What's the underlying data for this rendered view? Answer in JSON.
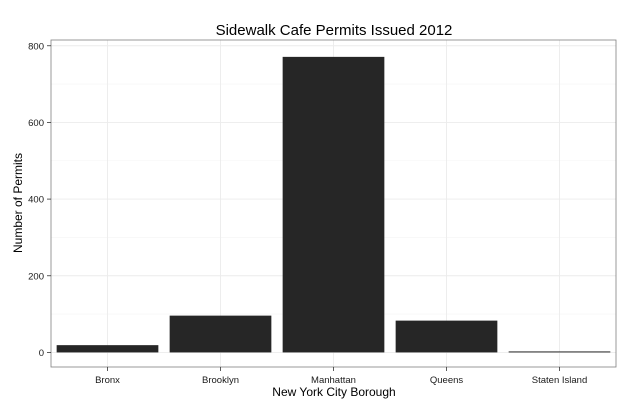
{
  "chart_data": {
    "type": "bar",
    "title": "Sidewalk Cafe Permits Issued 2012",
    "xlabel": "New York City Borough",
    "ylabel": "Number of Permits",
    "categories": [
      "Bronx",
      "Brooklyn",
      "Manhattan",
      "Queens",
      "Staten Island"
    ],
    "values": [
      19,
      96,
      771,
      83,
      2
    ],
    "ylim": [
      -38,
      815
    ],
    "yticks": [
      0,
      200,
      400,
      600,
      800
    ],
    "grid": true,
    "legend": "none",
    "colors": {
      "bar": "#262626",
      "grid": "#ebebeb",
      "panel_border": "#7f7f7f",
      "text": "#000000",
      "tick_text": "#1a1a1a"
    }
  }
}
